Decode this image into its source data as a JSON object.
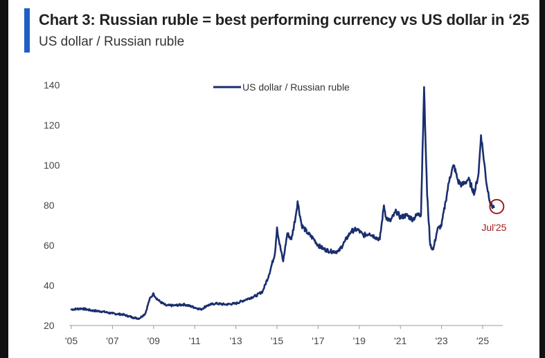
{
  "header": {
    "title": "Chart 3: Russian ruble = best performing currency vs US dollar in ‘25",
    "subtitle": "US dollar / Russian ruble"
  },
  "colors": {
    "accent": "#1f5fbf",
    "series": "#1a2e6e",
    "annotation": "#a01c1c"
  },
  "chart_data": {
    "type": "line",
    "ylim": [
      20,
      140
    ],
    "y_ticks": [
      "140",
      "120",
      "100",
      "80",
      "60",
      "40",
      "20"
    ],
    "x_ticks": [
      "'05",
      "'07",
      "'09",
      "'11",
      "'13",
      "'15",
      "'17",
      "'19",
      "'21",
      "'23",
      "'25"
    ],
    "grid": false,
    "legend_position": "top-center",
    "series": [
      {
        "name": "US dollar / Russian ruble",
        "x": [
          2005.0,
          2005.5,
          2006.0,
          2006.5,
          2007.0,
          2007.5,
          2008.0,
          2008.3,
          2008.6,
          2008.8,
          2009.0,
          2009.1,
          2009.3,
          2009.6,
          2010.0,
          2010.5,
          2011.0,
          2011.3,
          2011.6,
          2012.0,
          2012.5,
          2013.0,
          2013.5,
          2014.0,
          2014.3,
          2014.6,
          2014.9,
          2015.0,
          2015.1,
          2015.3,
          2015.5,
          2015.7,
          2015.9,
          2016.0,
          2016.2,
          2016.5,
          2016.8,
          2017.0,
          2017.3,
          2017.6,
          2018.0,
          2018.3,
          2018.6,
          2018.9,
          2019.2,
          2019.5,
          2019.8,
          2020.0,
          2020.2,
          2020.3,
          2020.5,
          2020.8,
          2021.0,
          2021.3,
          2021.6,
          2021.9,
          2022.0,
          2022.15,
          2022.2,
          2022.3,
          2022.45,
          2022.6,
          2022.8,
          2023.0,
          2023.2,
          2023.4,
          2023.6,
          2023.8,
          2024.0,
          2024.3,
          2024.6,
          2024.8,
          2024.92,
          2025.0,
          2025.2,
          2025.4,
          2025.55
        ],
        "y": [
          28,
          28.5,
          27.5,
          27,
          26,
          25.5,
          24,
          23.5,
          26,
          33,
          36,
          34,
          32,
          30,
          30,
          30.5,
          29,
          28,
          30,
          31,
          30.5,
          31,
          33,
          35,
          37,
          45,
          56,
          69,
          62,
          52,
          66,
          63,
          74,
          82,
          70,
          66,
          63,
          60,
          58,
          57,
          57,
          62,
          67,
          68,
          65,
          66,
          64,
          63,
          80,
          74,
          72,
          77,
          74,
          75,
          73,
          76,
          75,
          139,
          120,
          85,
          60,
          58,
          68,
          70,
          82,
          94,
          100,
          92,
          90,
          93,
          86,
          96,
          115,
          108,
          90,
          80,
          79
        ]
      }
    ],
    "annotations": [
      {
        "label": "Jul'25",
        "x": 2025.55,
        "y": 79
      }
    ]
  }
}
